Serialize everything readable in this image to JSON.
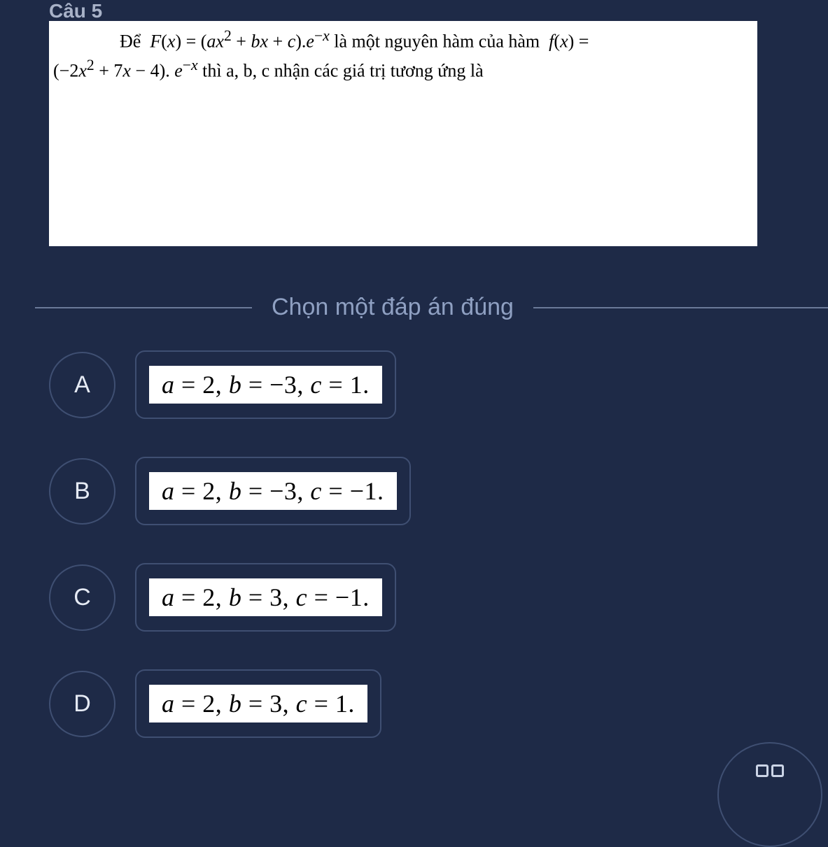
{
  "colors": {
    "page_bg": "#1e2a47",
    "panel_bg": "#ffffff",
    "text_dark": "#000000",
    "divider_text": "#8fa0c2",
    "divider_line": "#6b7a99",
    "circle_border": "#3f4f72",
    "option_letter": "#e6ebf5",
    "icon_stroke": "#cbd4e6"
  },
  "question": {
    "number_label": "Câu 5",
    "line1_html": "Để &nbsp;<i>F</i>(<i>x</i>) = (<i>ax</i><sup>2</sup> + <i>bx</i> + <i>c</i>).<i>e</i><sup>−<i>x</i></sup> là một nguyên hàm của hàm &nbsp;<i>f</i>(<i>x</i>) =",
    "line2_html": "(−2<i>x</i><sup>2</sup> + 7<i>x</i> − 4). <i>e</i><sup>−<i>x</i></sup> thì a, b, c nhận các giá trị tương ứng là"
  },
  "divider_label": "Chọn một đáp án đúng",
  "options": [
    {
      "letter": "A",
      "math_html": "a <span class='upright'>= 2,</span> b <span class='upright'>= −3,</span> c <span class='upright'>= 1.</span>",
      "rect_width": 500
    },
    {
      "letter": "B",
      "math_html": "a <span class='upright'>= 2,</span> b <span class='upright'>= −3,</span> c <span class='upright'>= −1.</span>",
      "rect_width": 535
    },
    {
      "letter": "C",
      "math_html": "a <span class='upright'>= 2,</span> b <span class='upright'>= 3,</span> c <span class='upright'>= −1.</span>",
      "rect_width": 500
    },
    {
      "letter": "D",
      "math_html": "a <span class='upright'>= 2,</span> b <span class='upright'>= 3,</span> c <span class='upright'>= 1.</span>",
      "rect_width": 470
    }
  ]
}
